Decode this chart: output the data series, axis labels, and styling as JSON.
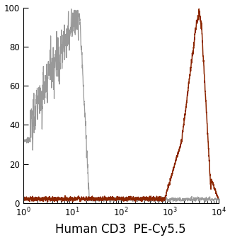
{
  "title": "",
  "xlabel": "Human CD3  PE-Cy5.5",
  "ylabel": "",
  "xlim_log": [
    1,
    10000
  ],
  "ylim": [
    0,
    100
  ],
  "yticks": [
    0,
    20,
    40,
    60,
    80,
    100
  ],
  "gray_color": "#999999",
  "orange_color": "#8B2500",
  "background_color": "#ffffff",
  "figsize": [
    3.25,
    3.39
  ],
  "dpi": 100,
  "xlabel_fontsize": 12
}
